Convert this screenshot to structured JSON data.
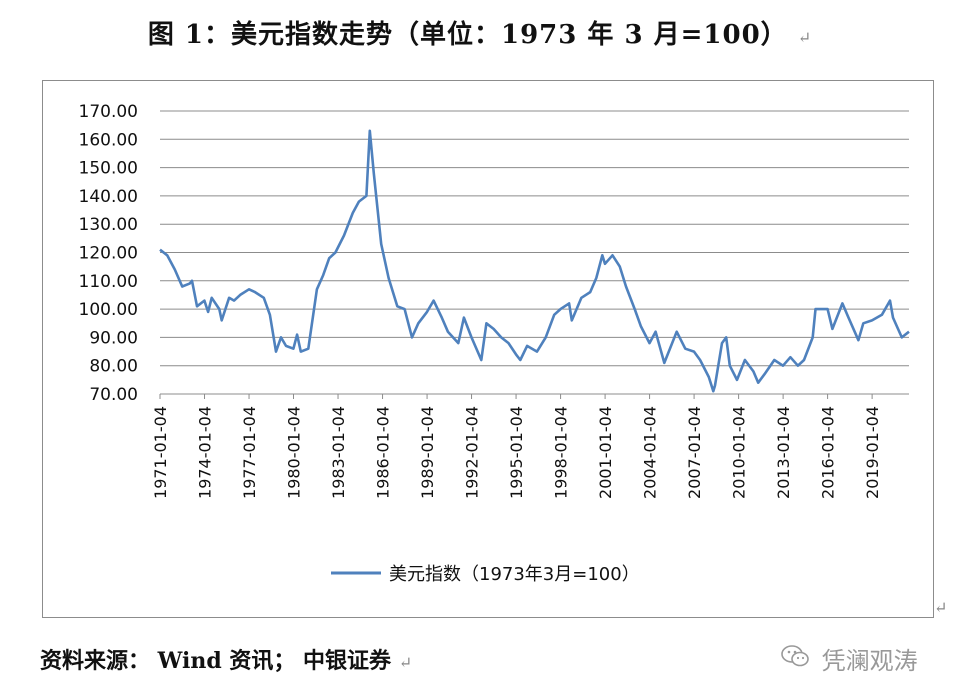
{
  "title": "图 1：美元指数走势（单位：1973 年 3 月=100）",
  "return_mark": "↵",
  "source": "资料来源： Wind 资讯； 中银证券",
  "watermark": "凭澜观涛",
  "watermark_icon": "wechat-icon",
  "colors": {
    "series": "#4f81bd",
    "grid": "#8c8c8c",
    "axis": "#8c8c8c",
    "text": "#111111"
  },
  "chart_data": {
    "type": "line",
    "title": "",
    "xlabel": "",
    "ylabel": "",
    "ylim": [
      70,
      170
    ],
    "y_ticks": [
      "170.00",
      "160.00",
      "150.00",
      "140.00",
      "130.00",
      "120.00",
      "110.00",
      "100.00",
      "90.00",
      "80.00",
      "70.00"
    ],
    "x_ticks": [
      "1971-01-04",
      "1974-01-04",
      "1977-01-04",
      "1980-01-04",
      "1983-01-04",
      "1986-01-04",
      "1989-01-04",
      "1992-01-04",
      "1995-01-04",
      "1998-01-04",
      "2001-01-04",
      "2004-01-04",
      "2007-01-04",
      "2010-01-04",
      "2013-01-04",
      "2016-01-04",
      "2019-01-04"
    ],
    "x_range": [
      "1971-01-04",
      "2021-06-30"
    ],
    "grid": true,
    "legend_position": "bottom",
    "series": [
      {
        "name": "美元指数（1973年3月=100）",
        "x": [
          "1971-01-04",
          "1971-07-01",
          "1972-01-03",
          "1972-07-03",
          "1973-01-02",
          "1973-03-01",
          "1973-07-02",
          "1974-01-02",
          "1974-04-01",
          "1974-07-01",
          "1975-01-02",
          "1975-03-03",
          "1975-09-01",
          "1976-01-02",
          "1976-06-01",
          "1977-01-03",
          "1977-06-01",
          "1978-01-03",
          "1978-06-01",
          "1978-10-31",
          "1979-03-01",
          "1979-07-02",
          "1980-01-02",
          "1980-04-01",
          "1980-07-01",
          "1981-01-02",
          "1981-08-03",
          "1982-01-04",
          "1982-06-01",
          "1982-11-01",
          "1983-06-01",
          "1984-01-03",
          "1984-06-01",
          "1984-12-03",
          "1985-02-25",
          "1985-06-03",
          "1985-12-02",
          "1986-06-02",
          "1987-01-02",
          "1987-07-01",
          "1987-12-31",
          "1988-06-01",
          "1989-01-03",
          "1989-06-15",
          "1990-01-02",
          "1990-06-01",
          "1991-02-11",
          "1991-07-01",
          "1992-01-02",
          "1992-09-01",
          "1993-01-04",
          "1993-07-01",
          "1994-01-03",
          "1994-07-01",
          "1995-01-03",
          "1995-04-19",
          "1995-10-02",
          "1996-06-03",
          "1997-01-02",
          "1997-08-01",
          "1998-01-02",
          "1998-08-03",
          "1998-10-07",
          "1999-06-01",
          "2000-01-03",
          "2000-06-01",
          "2000-10-26",
          "2001-01-02",
          "2001-07-05",
          "2002-01-02",
          "2002-06-03",
          "2003-01-02",
          "2003-06-02",
          "2004-01-02",
          "2004-06-01",
          "2004-12-31",
          "2005-11-01",
          "2006-06-01",
          "2007-01-02",
          "2007-06-01",
          "2008-01-02",
          "2008-04-22",
          "2008-06-02",
          "2008-11-20",
          "2009-03-04",
          "2009-06-01",
          "2009-11-25",
          "2010-06-07",
          "2011-01-03",
          "2011-05-02",
          "2011-10-03",
          "2012-06-01",
          "2013-01-02",
          "2013-07-01",
          "2014-01-02",
          "2014-06-02",
          "2015-01-02",
          "2015-03-13",
          "2016-01-04",
          "2016-05-02",
          "2017-01-03",
          "2017-06-01",
          "2018-02-01",
          "2018-06-01",
          "2019-01-02",
          "2019-09-03",
          "2020-03-20",
          "2020-06-01",
          "2021-01-04",
          "2021-06-30"
        ],
        "values": [
          121,
          119,
          114,
          108,
          109,
          110,
          101,
          103,
          99,
          104,
          100,
          96,
          104,
          103,
          105,
          107,
          106,
          104,
          98,
          85,
          90,
          87,
          86,
          91,
          85,
          86,
          107,
          112,
          118,
          120,
          126,
          134,
          138,
          140,
          163,
          148,
          123,
          111,
          101,
          100,
          90,
          95,
          99,
          103,
          97,
          92,
          88,
          97,
          90,
          82,
          95,
          93,
          90,
          88,
          84,
          82,
          87,
          85,
          90,
          98,
          100,
          102,
          96,
          104,
          106,
          111,
          119,
          116,
          119,
          115,
          108,
          100,
          94,
          88,
          92,
          81,
          92,
          86,
          85,
          82,
          76,
          71,
          73,
          88,
          90,
          80,
          75,
          82,
          78,
          74,
          77,
          82,
          80,
          83,
          80,
          82,
          90,
          100,
          100,
          93,
          102,
          97,
          89,
          95,
          96,
          98,
          103,
          97,
          90,
          92
        ]
      }
    ]
  }
}
